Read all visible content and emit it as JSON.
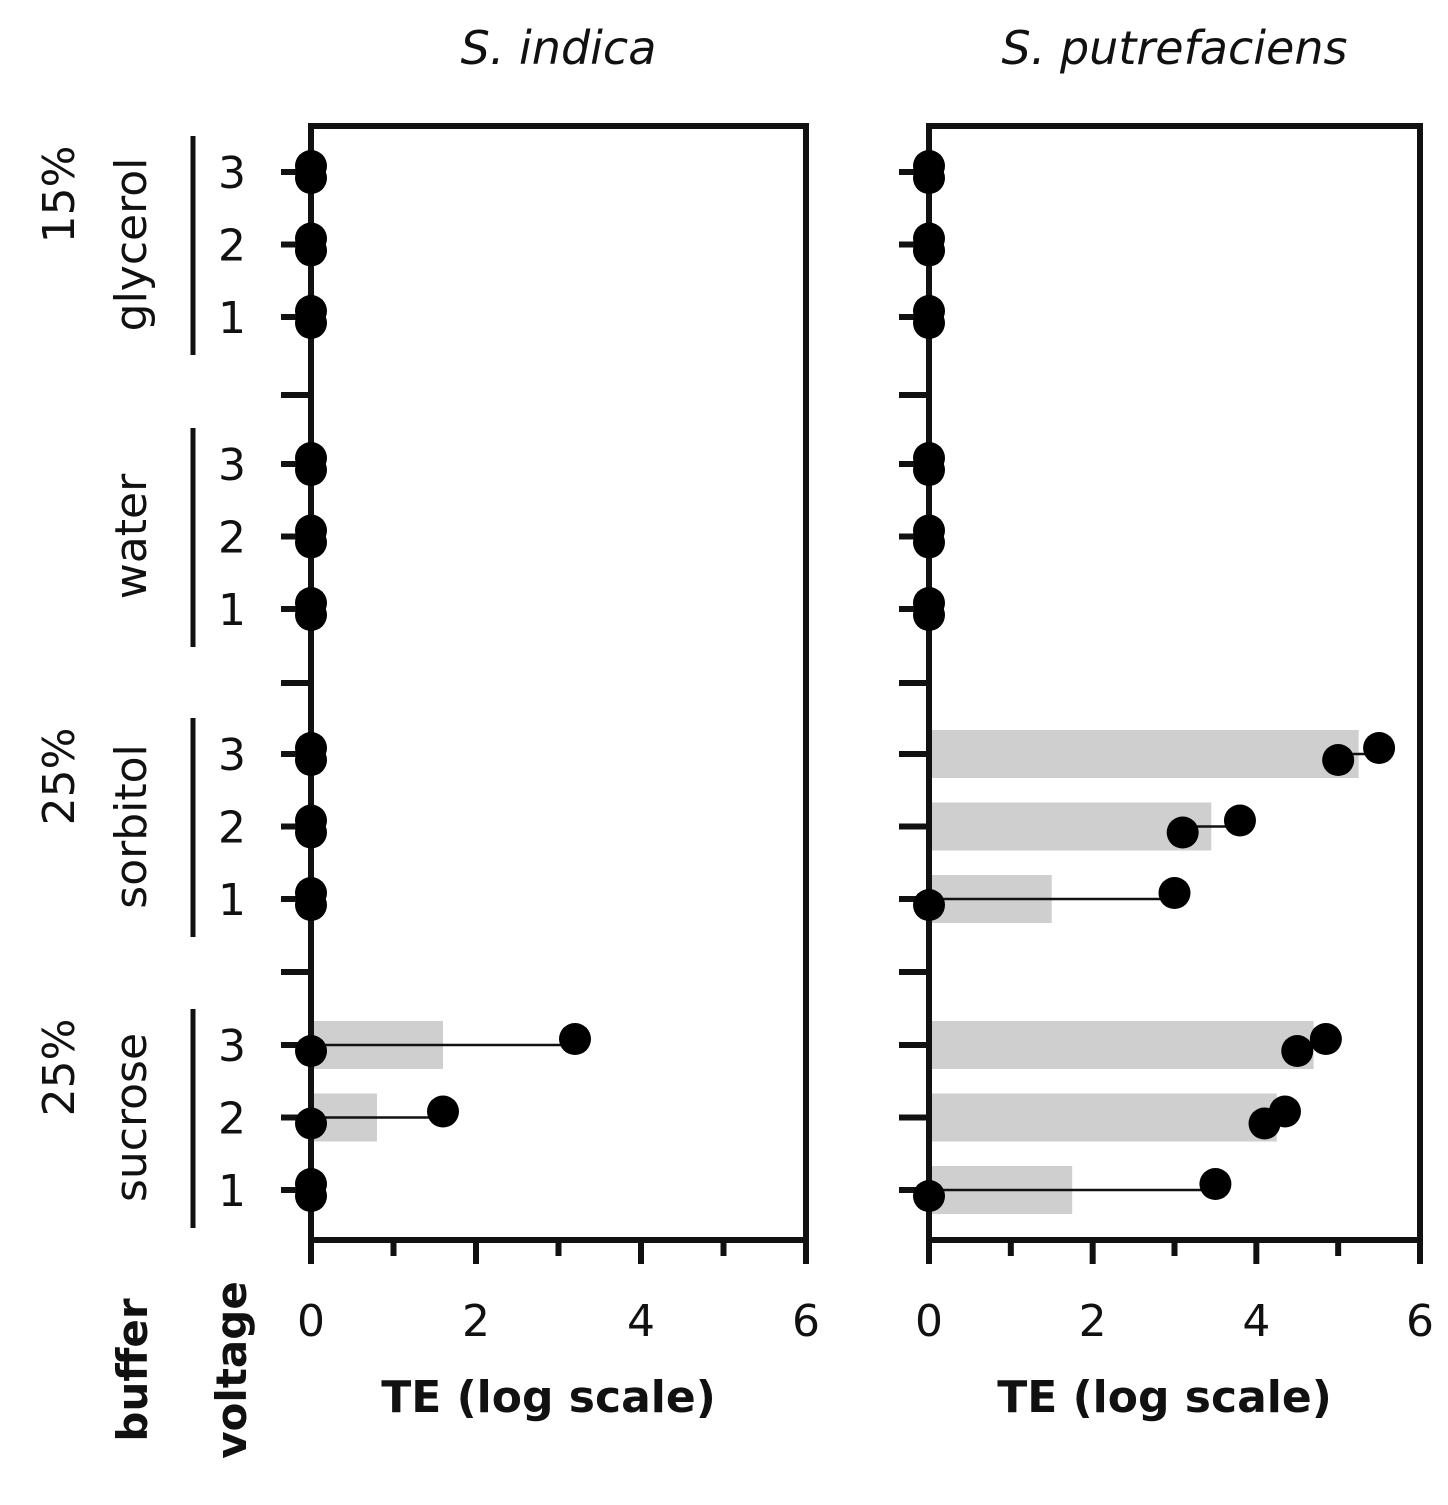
{
  "figure": {
    "buffer_label": "buffer",
    "voltage_label": "voltage"
  },
  "chart_data": [
    {
      "type": "bar",
      "orientation": "horizontal",
      "title": "S. indica",
      "xlabel": "TE (log scale)",
      "xlim": [
        0,
        6
      ],
      "xticks": [
        "0",
        "2",
        "4",
        "6"
      ],
      "minor_xticks": [
        1,
        3,
        5
      ],
      "groups": [
        {
          "pct": "15%",
          "name": "glycerol",
          "rows": [
            {
              "voltage": "3",
              "bar": 0,
              "points": [
                0,
                0
              ]
            },
            {
              "voltage": "2",
              "bar": 0,
              "points": [
                0,
                0
              ]
            },
            {
              "voltage": "1",
              "bar": 0,
              "points": [
                0,
                0
              ]
            }
          ]
        },
        {
          "pct": "",
          "name": "water",
          "rows": [
            {
              "voltage": "3",
              "bar": 0,
              "points": [
                0,
                0
              ]
            },
            {
              "voltage": "2",
              "bar": 0,
              "points": [
                0,
                0
              ]
            },
            {
              "voltage": "1",
              "bar": 0,
              "points": [
                0,
                0
              ]
            }
          ]
        },
        {
          "pct": "25%",
          "name": "sorbitol",
          "rows": [
            {
              "voltage": "3",
              "bar": 0,
              "points": [
                0,
                0
              ]
            },
            {
              "voltage": "2",
              "bar": 0,
              "points": [
                0,
                0
              ]
            },
            {
              "voltage": "1",
              "bar": 0,
              "points": [
                0,
                0
              ]
            }
          ]
        },
        {
          "pct": "25%",
          "name": "sucrose",
          "rows": [
            {
              "voltage": "3",
              "bar": 1.6,
              "points": [
                0,
                3.2
              ]
            },
            {
              "voltage": "2",
              "bar": 0.8,
              "points": [
                0,
                1.6
              ]
            },
            {
              "voltage": "1",
              "bar": 0,
              "points": [
                0,
                0
              ]
            }
          ]
        }
      ]
    },
    {
      "type": "bar",
      "orientation": "horizontal",
      "title": "S. putrefaciens",
      "xlabel": "TE (log scale)",
      "xlim": [
        0,
        6
      ],
      "xticks": [
        "0",
        "2",
        "4",
        "6"
      ],
      "minor_xticks": [
        1,
        3,
        5
      ],
      "groups": [
        {
          "pct": "15%",
          "name": "glycerol",
          "rows": [
            {
              "voltage": "3",
              "bar": 0,
              "points": [
                0,
                0
              ]
            },
            {
              "voltage": "2",
              "bar": 0,
              "points": [
                0,
                0
              ]
            },
            {
              "voltage": "1",
              "bar": 0,
              "points": [
                0,
                0
              ]
            }
          ]
        },
        {
          "pct": "",
          "name": "water",
          "rows": [
            {
              "voltage": "3",
              "bar": 0,
              "points": [
                0,
                0
              ]
            },
            {
              "voltage": "2",
              "bar": 0,
              "points": [
                0,
                0
              ]
            },
            {
              "voltage": "1",
              "bar": 0,
              "points": [
                0,
                0
              ]
            }
          ]
        },
        {
          "pct": "25%",
          "name": "sorbitol",
          "rows": [
            {
              "voltage": "3",
              "bar": 5.25,
              "points": [
                5.0,
                5.5
              ]
            },
            {
              "voltage": "2",
              "bar": 3.45,
              "points": [
                3.1,
                3.8
              ]
            },
            {
              "voltage": "1",
              "bar": 1.5,
              "points": [
                0,
                3.0
              ]
            }
          ]
        },
        {
          "pct": "25%",
          "name": "sucrose",
          "rows": [
            {
              "voltage": "3",
              "bar": 4.7,
              "points": [
                4.5,
                4.85
              ]
            },
            {
              "voltage": "2",
              "bar": 4.25,
              "points": [
                4.1,
                4.35
              ]
            },
            {
              "voltage": "1",
              "bar": 1.75,
              "points": [
                0,
                3.5
              ]
            }
          ]
        }
      ]
    }
  ]
}
